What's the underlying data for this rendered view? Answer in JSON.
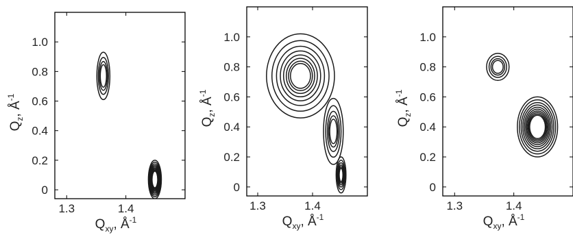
{
  "chart_data": [
    {
      "type": "contour",
      "panel": "left",
      "xlabel": "Q_xy, Å^-1",
      "ylabel": "Q_z, Å^-1",
      "xlim": [
        1.28,
        1.5
      ],
      "ylim": [
        -0.06,
        1.2
      ],
      "xticks": [
        "1.3",
        "1.4"
      ],
      "yticks": [
        "0",
        "0.2",
        "0.4",
        "0.6",
        "0.8",
        "1.0"
      ],
      "peaks": [
        {
          "qxy": 1.362,
          "qz": 0.77,
          "rx": 0.011,
          "ry": 0.16,
          "levels": 4,
          "ring_ratio": 0.78
        },
        {
          "qxy": 1.449,
          "qz": 0.07,
          "rx": 0.011,
          "ry": 0.13,
          "levels": 9,
          "ring_ratio": 0.9
        }
      ]
    },
    {
      "type": "contour",
      "panel": "middle",
      "xlabel": "Q_xy, Å^-1",
      "ylabel": "Q_z, Å^-1",
      "xlim": [
        1.28,
        1.5
      ],
      "ylim": [
        -0.06,
        1.2
      ],
      "xticks": [
        "1.3",
        "1.4"
      ],
      "yticks": [
        "0",
        "0.2",
        "0.4",
        "0.6",
        "0.8",
        "1.0"
      ],
      "peaks": [
        {
          "qxy": 1.378,
          "qz": 0.74,
          "rx": 0.062,
          "ry": 0.28,
          "levels": 8,
          "ring_ratio": 0.84
        },
        {
          "qxy": 1.438,
          "qz": 0.37,
          "rx": 0.018,
          "ry": 0.22,
          "levels": 5,
          "ring_ratio": 0.78
        },
        {
          "qxy": 1.452,
          "qz": 0.08,
          "rx": 0.009,
          "ry": 0.12,
          "levels": 6,
          "ring_ratio": 0.82
        }
      ]
    },
    {
      "type": "contour",
      "panel": "right",
      "xlabel": "Q_xy, Å^-1",
      "ylabel": "Q_z, Å^-1",
      "xlim": [
        1.28,
        1.5
      ],
      "ylim": [
        -0.06,
        1.2
      ],
      "xticks": [
        "1.3",
        "1.4"
      ],
      "yticks": [
        "0",
        "0.2",
        "0.4",
        "0.6",
        "0.8",
        "1.0"
      ],
      "peaks": [
        {
          "qxy": 1.373,
          "qz": 0.8,
          "rx": 0.019,
          "ry": 0.09,
          "levels": 4,
          "ring_ratio": 0.78
        },
        {
          "qxy": 1.44,
          "qz": 0.4,
          "rx": 0.034,
          "ry": 0.2,
          "levels": 10,
          "ring_ratio": 0.9
        }
      ]
    }
  ]
}
